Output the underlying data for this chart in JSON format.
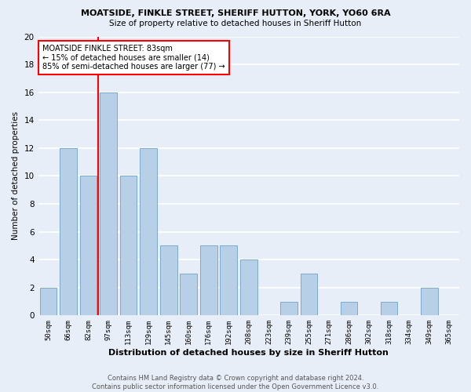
{
  "title": "MOATSIDE, FINKLE STREET, SHERIFF HUTTON, YORK, YO60 6RA",
  "subtitle": "Size of property relative to detached houses in Sheriff Hutton",
  "xlabel": "Distribution of detached houses by size in Sheriff Hutton",
  "ylabel": "Number of detached properties",
  "categories": [
    "50sqm",
    "66sqm",
    "82sqm",
    "97sqm",
    "113sqm",
    "129sqm",
    "145sqm",
    "160sqm",
    "176sqm",
    "192sqm",
    "208sqm",
    "223sqm",
    "239sqm",
    "255sqm",
    "271sqm",
    "286sqm",
    "302sqm",
    "318sqm",
    "334sqm",
    "349sqm",
    "365sqm"
  ],
  "values": [
    2,
    12,
    10,
    16,
    10,
    12,
    5,
    3,
    5,
    5,
    4,
    0,
    1,
    3,
    0,
    1,
    0,
    1,
    0,
    2,
    0
  ],
  "bar_color": "#b8cfe8",
  "bar_edgecolor": "#7aaace",
  "vline_x": 2.5,
  "vline_color": "red",
  "annotation_text": "MOATSIDE FINKLE STREET: 83sqm\n← 15% of detached houses are smaller (14)\n85% of semi-detached houses are larger (77) →",
  "annotation_box_color": "white",
  "annotation_box_edgecolor": "red",
  "ylim": [
    0,
    20
  ],
  "yticks": [
    0,
    2,
    4,
    6,
    8,
    10,
    12,
    14,
    16,
    18,
    20
  ],
  "footer": "Contains HM Land Registry data © Crown copyright and database right 2024.\nContains public sector information licensed under the Open Government Licence v3.0.",
  "bg_color": "#e8eef8",
  "grid_color": "white"
}
